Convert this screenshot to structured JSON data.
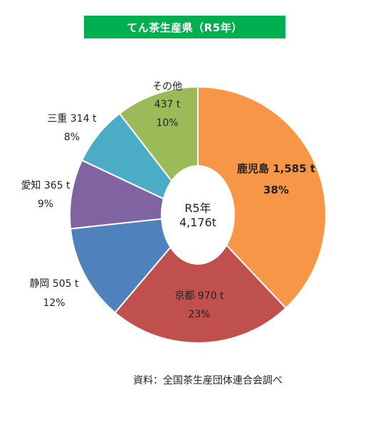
{
  "chart_data": {
    "type": "pie",
    "title": "てん茶生産県（R5年）",
    "center_label": {
      "line1": "R5年",
      "line2": "4,176t"
    },
    "source": "資料：全国茶生産団体連合会調べ",
    "slices": [
      {
        "name": "鹿児島",
        "value": 1585,
        "value_label": "1,585 t",
        "percent": "38%",
        "color": "#f79646"
      },
      {
        "name": "京都",
        "value": 970,
        "value_label": "970 t",
        "percent": "23%",
        "color": "#c0504d"
      },
      {
        "name": "静岡",
        "value": 505,
        "value_label": "505 t",
        "percent": "12%",
        "color": "#4f81bd"
      },
      {
        "name": "愛知",
        "value": 365,
        "value_label": "365 t",
        "percent": "9%",
        "color": "#8064a2"
      },
      {
        "name": "三重",
        "value": 314,
        "value_label": "314 t",
        "percent": "8%",
        "color": "#4bacc6"
      },
      {
        "name": "その他",
        "value": 437,
        "value_label": "437 t",
        "percent": "10%",
        "color": "#9bbb59"
      }
    ]
  }
}
